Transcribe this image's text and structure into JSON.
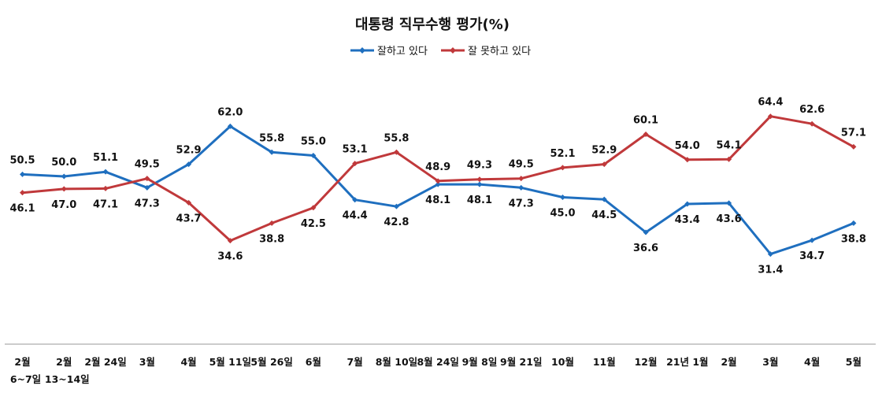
{
  "chart_data": {
    "type": "line",
    "title": "대통령 직무수행 평가(%)",
    "categories": [
      "2월",
      "2월",
      "2월 24일",
      "3월",
      "4월",
      "5월 11일",
      "5월 26일",
      "6월",
      "7월",
      "8월 10일",
      "8월 24일",
      "9월 8일",
      "9월 21일",
      "10월",
      "11월",
      "12월",
      "21년 1월",
      "2월",
      "3월",
      "4월",
      "5월"
    ],
    "sub_labels": [
      "6~7일",
      "13~14일"
    ],
    "legend_position": "top",
    "grid": false,
    "ylim": [
      0,
      100
    ],
    "series": [
      {
        "name": "잘하고 있다",
        "color": "#1f6fbf",
        "values": [
          50.5,
          50.0,
          51.1,
          47.3,
          52.9,
          62.0,
          55.8,
          55.0,
          44.4,
          42.8,
          48.1,
          48.1,
          47.3,
          45.0,
          44.5,
          36.6,
          43.4,
          43.6,
          31.4,
          34.7,
          38.8
        ]
      },
      {
        "name": "잘 못하고 있다",
        "color": "#c0393b",
        "values": [
          46.1,
          47.0,
          47.1,
          49.5,
          43.7,
          34.6,
          38.8,
          42.5,
          53.1,
          55.8,
          48.9,
          49.3,
          49.5,
          52.1,
          52.9,
          60.1,
          54.0,
          54.1,
          64.4,
          62.6,
          57.1
        ]
      }
    ]
  }
}
